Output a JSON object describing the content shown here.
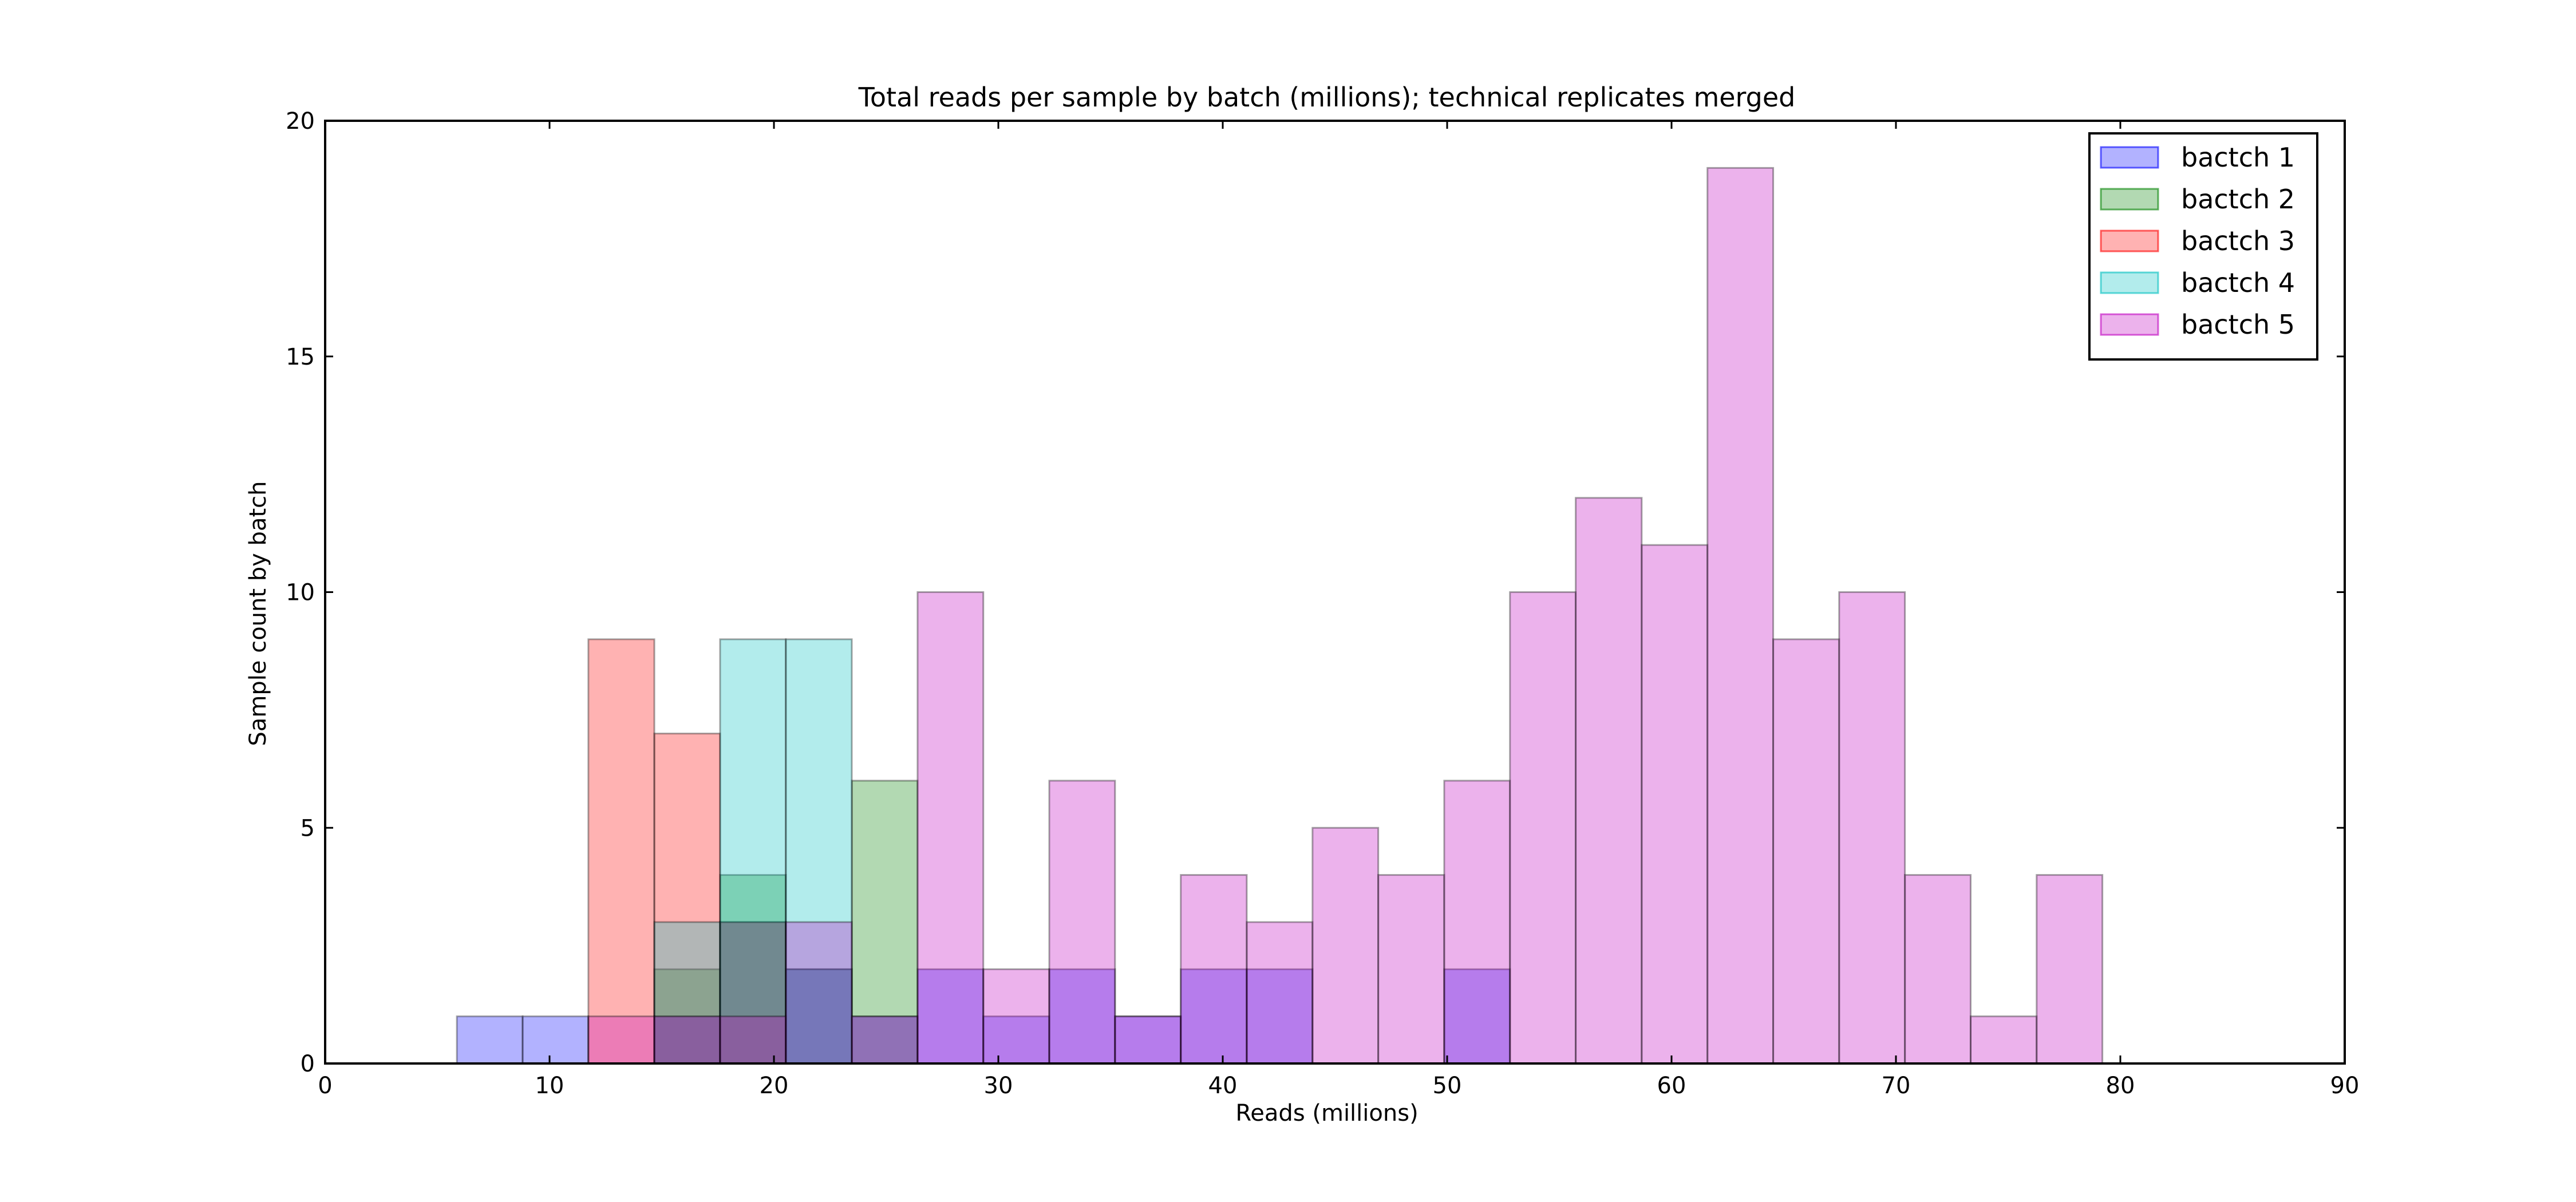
{
  "chart_data": {
    "type": "bar",
    "title": "Total reads per sample by batch (millions); technical replicates merged",
    "xlabel": "Reads (millions)",
    "ylabel": "Sample count by batch",
    "xlim": [
      0,
      90
    ],
    "ylim": [
      0,
      20
    ],
    "xticks": [
      0,
      10,
      20,
      30,
      40,
      50,
      60,
      70,
      80,
      90
    ],
    "yticks": [
      0,
      5,
      10,
      15,
      20
    ],
    "grid": false,
    "legend_position": "top-right",
    "bin_edges": [
      0,
      2.93,
      5.87,
      8.8,
      11.73,
      14.67,
      17.6,
      20.53,
      23.47,
      26.4,
      29.33,
      32.27,
      35.2,
      38.13,
      41.07,
      44.0,
      46.93,
      49.87,
      52.8,
      55.73,
      58.67,
      61.6,
      64.53,
      67.47,
      70.4,
      73.33,
      76.27,
      79.2,
      82.13,
      85.07,
      88.0
    ],
    "series": [
      {
        "name": "bactch 1",
        "color": "#0000ff",
        "counts": [
          0,
          0,
          1,
          1,
          0,
          1,
          3,
          2,
          1,
          2,
          1,
          2,
          1,
          2,
          2,
          0,
          0,
          2,
          0,
          0,
          0,
          0,
          0,
          0,
          0,
          0,
          0,
          0,
          0,
          0
        ]
      },
      {
        "name": "bactch 2",
        "color": "#008000",
        "counts": [
          0,
          0,
          0,
          0,
          0,
          2,
          4,
          2,
          6,
          0,
          0,
          0,
          0,
          0,
          0,
          0,
          0,
          0,
          0,
          0,
          0,
          0,
          0,
          0,
          0,
          0,
          0,
          0,
          0,
          0
        ]
      },
      {
        "name": "bactch 3",
        "color": "#ff0000",
        "counts": [
          0,
          0,
          0,
          0,
          9,
          7,
          3,
          0,
          0,
          0,
          0,
          0,
          0,
          0,
          0,
          0,
          0,
          0,
          0,
          0,
          0,
          0,
          0,
          0,
          0,
          0,
          0,
          0,
          0,
          0
        ]
      },
      {
        "name": "bactch 4",
        "color": "#00bfbf",
        "counts": [
          0,
          0,
          0,
          0,
          0,
          3,
          9,
          9,
          0,
          0,
          0,
          0,
          0,
          0,
          0,
          0,
          0,
          0,
          0,
          0,
          0,
          0,
          0,
          0,
          0,
          0,
          0,
          0,
          0,
          0
        ]
      },
      {
        "name": "bactch 5",
        "color": "#bf00bf",
        "counts": [
          0,
          0,
          0,
          0,
          1,
          1,
          1,
          3,
          1,
          10,
          2,
          6,
          1,
          4,
          3,
          5,
          4,
          6,
          10,
          12,
          11,
          19,
          9,
          10,
          4,
          1,
          4,
          0,
          0,
          0
        ]
      }
    ]
  }
}
